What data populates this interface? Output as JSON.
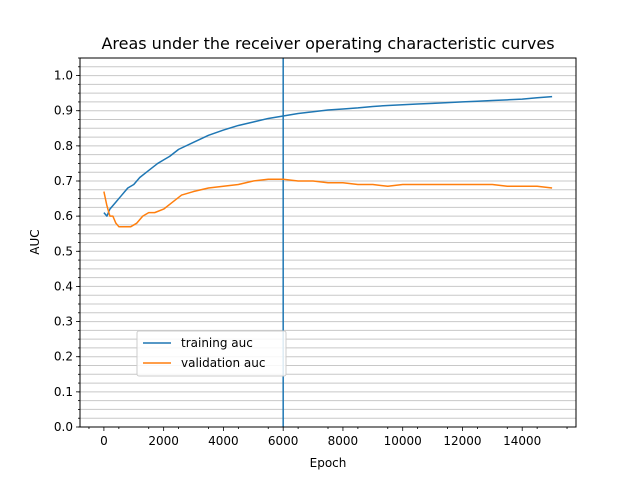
{
  "chart_data": {
    "type": "line",
    "title": "Areas under the receiver operating characteristic curves",
    "xlabel": "Epoch",
    "ylabel": "AUC",
    "xlim": [
      -800,
      15800
    ],
    "ylim": [
      0.0,
      1.05
    ],
    "xticks": [
      0,
      2000,
      4000,
      6000,
      8000,
      10000,
      12000,
      14000
    ],
    "xtick_labels": [
      "0",
      "2000",
      "4000",
      "6000",
      "8000",
      "10000",
      "12000",
      "14000"
    ],
    "yticks": [
      0.0,
      0.1,
      0.2,
      0.3,
      0.4,
      0.5,
      0.6,
      0.7,
      0.8,
      0.9,
      1.0
    ],
    "ytick_labels": [
      "0.0",
      "0.1",
      "0.2",
      "0.3",
      "0.4",
      "0.5",
      "0.6",
      "0.7",
      "0.8",
      "0.9",
      "1.0"
    ],
    "y_minor_step": 0.025,
    "grid": "horizontal, major and minor",
    "legend_position": "lower left",
    "vline": {
      "x": 6000,
      "color": "#1f77b4"
    },
    "series": [
      {
        "name": "training auc",
        "color": "#1f77b4",
        "x": [
          0,
          100,
          200,
          300,
          400,
          500,
          600,
          700,
          800,
          1000,
          1200,
          1500,
          1800,
          2000,
          2200,
          2500,
          3000,
          3500,
          4000,
          4500,
          5000,
          5500,
          6000,
          6500,
          7000,
          7500,
          8000,
          8500,
          9000,
          9500,
          10000,
          10500,
          11000,
          11500,
          12000,
          12500,
          13000,
          13500,
          14000,
          14500,
          15000
        ],
        "y": [
          0.61,
          0.6,
          0.62,
          0.63,
          0.64,
          0.65,
          0.66,
          0.67,
          0.68,
          0.69,
          0.71,
          0.73,
          0.75,
          0.76,
          0.77,
          0.79,
          0.81,
          0.83,
          0.845,
          0.858,
          0.868,
          0.878,
          0.885,
          0.892,
          0.897,
          0.902,
          0.905,
          0.908,
          0.912,
          0.915,
          0.917,
          0.919,
          0.921,
          0.923,
          0.925,
          0.927,
          0.929,
          0.931,
          0.933,
          0.937,
          0.94
        ]
      },
      {
        "name": "validation auc",
        "color": "#ff7f0e",
        "x": [
          0,
          100,
          200,
          300,
          400,
          500,
          700,
          900,
          1100,
          1300,
          1500,
          1700,
          2000,
          2300,
          2600,
          3000,
          3500,
          4000,
          4500,
          5000,
          5500,
          6000,
          6500,
          7000,
          7500,
          8000,
          8500,
          9000,
          9500,
          10000,
          10500,
          11000,
          11500,
          12000,
          12500,
          13000,
          13500,
          14000,
          14500,
          15000
        ],
        "y": [
          0.67,
          0.63,
          0.6,
          0.6,
          0.58,
          0.57,
          0.57,
          0.57,
          0.58,
          0.6,
          0.61,
          0.61,
          0.62,
          0.64,
          0.66,
          0.67,
          0.68,
          0.685,
          0.69,
          0.7,
          0.705,
          0.705,
          0.7,
          0.7,
          0.695,
          0.695,
          0.69,
          0.69,
          0.685,
          0.69,
          0.69,
          0.69,
          0.69,
          0.69,
          0.69,
          0.69,
          0.685,
          0.685,
          0.685,
          0.68
        ]
      }
    ]
  }
}
